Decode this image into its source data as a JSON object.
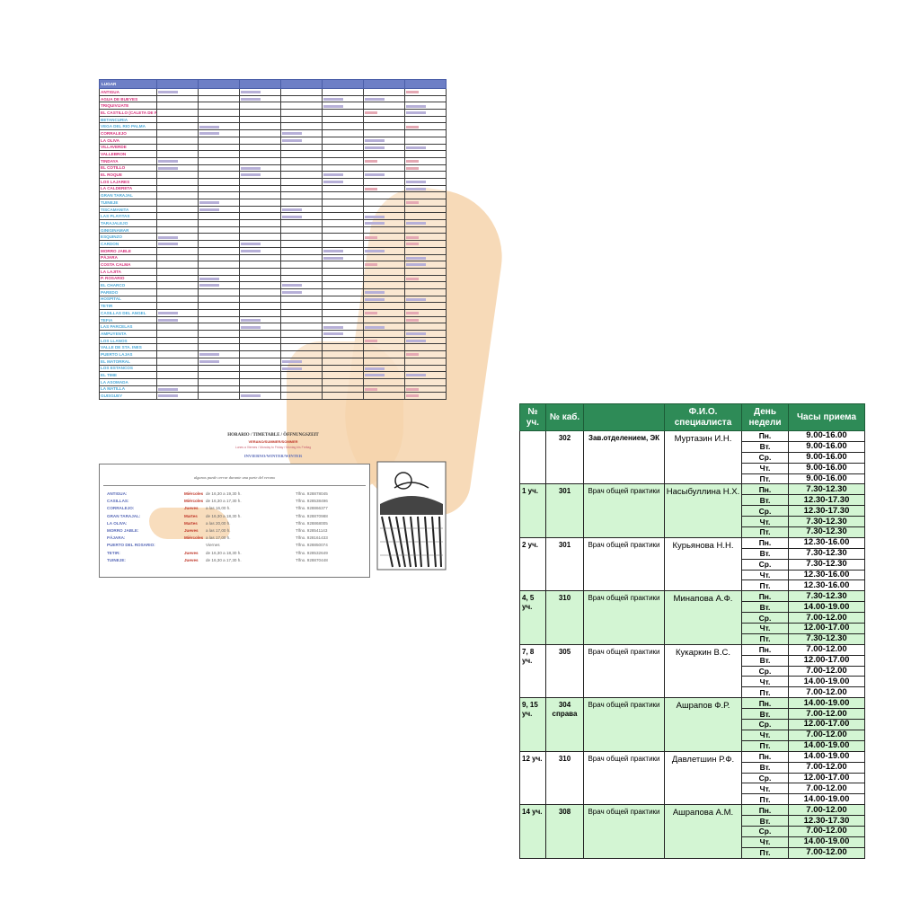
{
  "left_doc": {
    "header_label": "LUGAR",
    "locations": [
      {
        "name": "ANTIGUA",
        "color": "#d6307a"
      },
      {
        "name": "AGUA DE BUEYES",
        "color": "#d6307a"
      },
      {
        "name": "TRIQUIVIJATE",
        "color": "#d6307a"
      },
      {
        "name": "EL CASTILLO (CALETA DE FUSTE)",
        "color": "#d6307a"
      },
      {
        "name": "BETANCURIA",
        "color": "#4aa8d8"
      },
      {
        "name": "VEGA DEL RIO PALMA",
        "color": "#4aa8d8"
      },
      {
        "name": "CORRALEJO",
        "color": "#d6307a"
      },
      {
        "name": "LA OLIVA",
        "color": "#d6307a"
      },
      {
        "name": "VILLAVERDE",
        "color": "#d6307a"
      },
      {
        "name": "VALLEBRON",
        "color": "#d6307a"
      },
      {
        "name": "TINDAYA",
        "color": "#d6307a"
      },
      {
        "name": "EL COTILLO",
        "color": "#d6307a"
      },
      {
        "name": "EL ROQUE",
        "color": "#d6307a"
      },
      {
        "name": "LOS LAJARES",
        "color": "#d6307a"
      },
      {
        "name": "LA CALDERETA",
        "color": "#d6307a"
      },
      {
        "name": "GRAN TARAJAL",
        "color": "#4aa8d8"
      },
      {
        "name": "TUINEJE",
        "color": "#4aa8d8"
      },
      {
        "name": "TISCAMANITA",
        "color": "#4aa8d8"
      },
      {
        "name": "LAS PLAYITAS",
        "color": "#4aa8d8"
      },
      {
        "name": "TARAJALEJO",
        "color": "#4aa8d8"
      },
      {
        "name": "GINIGINAMAR",
        "color": "#4aa8d8"
      },
      {
        "name": "ESQUINZO",
        "color": "#4aa8d8"
      },
      {
        "name": "CARDON",
        "color": "#4aa8d8"
      },
      {
        "name": "MORRO JABLE",
        "color": "#d6307a"
      },
      {
        "name": "PÁJARA",
        "color": "#d6307a"
      },
      {
        "name": "COSTA CALMA",
        "color": "#d6307a"
      },
      {
        "name": "LA LAJITA",
        "color": "#d6307a"
      },
      {
        "name": "P. ROSARIO",
        "color": "#d6307a"
      },
      {
        "name": "EL CHARCO",
        "color": "#4aa8d8"
      },
      {
        "name": "PAREDO",
        "color": "#4aa8d8"
      },
      {
        "name": "HOSPITAL",
        "color": "#4aa8d8"
      },
      {
        "name": "TETIR",
        "color": "#4aa8d8"
      },
      {
        "name": "CASILLAS DEL ANGEL",
        "color": "#4aa8d8"
      },
      {
        "name": "TEFIA",
        "color": "#4aa8d8"
      },
      {
        "name": "LAS PARCELAS",
        "color": "#4aa8d8"
      },
      {
        "name": "AMPUYENTA",
        "color": "#4aa8d8"
      },
      {
        "name": "LOS LLANOS",
        "color": "#4aa8d8"
      },
      {
        "name": "VALLE DE STA. INES",
        "color": "#4aa8d8"
      },
      {
        "name": "PUERTO LAJAS",
        "color": "#4aa8d8"
      },
      {
        "name": "EL MATORRAL",
        "color": "#4aa8d8"
      },
      {
        "name": "LOS ESTANCOS",
        "color": "#4aa8d8"
      },
      {
        "name": "EL TIME",
        "color": "#4aa8d8"
      },
      {
        "name": "LA ASOMADA",
        "color": "#4aa8d8"
      },
      {
        "name": "LA MATILLA",
        "color": "#4aa8d8"
      },
      {
        "name": "GUISGUEY",
        "color": "#4aa8d8"
      }
    ],
    "horario_title": "HORARIO / TIMETABLE / ÖFFNUNGSZEIT",
    "horario_subtitle": "VERANO/SUMMER/SOMMER",
    "horario_line": "Lunes a Viernes / Monday to Friday / Montag bis Freitag",
    "invierno": "INVIERNO/WINTER/WINTER",
    "box_note": "algunos puede cerrar durante una parte del verano",
    "bottom_rows": [
      {
        "place": "ANTIGUA:",
        "day": "Miércoles",
        "hours": "de 16,30 a 19,30 h.",
        "tel": "Tlfno. 928878045"
      },
      {
        "place": "CASILLAS:",
        "day": "Miércoles",
        "hours": "de 16,30 a 17,30 h.",
        "tel": "Tlfno. 928538496"
      },
      {
        "place": "CORRALEJO:",
        "day": "Jueves",
        "hours": "a las 16,00 h.",
        "tel": "Tlfno. 928866377"
      },
      {
        "place": "GRAN TARAJAL:",
        "day": "Martes",
        "hours": "de 16,30 a 18,30 h.",
        "tel": "Tlfno. 928870988"
      },
      {
        "place": "LA OLIVA:",
        "day": "Martes",
        "hours": "a las 20,00 h.",
        "tel": "Tlfno. 928868005"
      },
      {
        "place": "MORRO JABLE:",
        "day": "Jueves",
        "hours": "a las 17,00 h.",
        "tel": "Tlfno. 928541143"
      },
      {
        "place": "PÁJARA:",
        "day": "Miércoles",
        "hours": "a las 17,00 h.",
        "tel": "Tlfno. 928161433"
      },
      {
        "place": "PUERTO DEL ROSARIO:",
        "day": "",
        "hours": "Viernes",
        "tel": "Tlfno. 928850074"
      },
      {
        "place": "TETIR:",
        "day": "Jueves",
        "hours": "de 16,30 a 18,30 h.",
        "tel": "Tlfno. 928532649"
      },
      {
        "place": "TUINEJE:",
        "day": "Jueves",
        "hours": "de 16,30 a 17,30 h.",
        "tel": "Tlfno. 928870448"
      }
    ]
  },
  "right_table": {
    "headers": [
      "№ уч.",
      "№ каб.",
      "",
      "Ф.И.О. специалиста",
      "День недели",
      "Часы приема"
    ],
    "doctors": [
      {
        "uch": "",
        "kab": "302",
        "position": "Зав.отделением, ЭК",
        "name": "Муртазин И.Н.",
        "green": false,
        "days": [
          "Пн.",
          "Вт.",
          "Ср.",
          "Чт.",
          "Пт."
        ],
        "hours": [
          "9.00-16.00",
          "9.00-16.00",
          "9.00-16.00",
          "9.00-16.00",
          "9.00-16.00"
        ]
      },
      {
        "uch": "1 уч.",
        "kab": "301",
        "position": "Врач общей практики",
        "name": "Насыбуллина Н.Х.",
        "green": true,
        "days": [
          "Пн.",
          "Вт.",
          "Ср.",
          "Чт.",
          "Пт."
        ],
        "hours": [
          "7.30-12.30",
          "12.30-17.30",
          "12.30-17.30",
          "7.30-12.30",
          "7.30-12.30"
        ]
      },
      {
        "uch": "2 уч.",
        "kab": "301",
        "position": "Врач общей практики",
        "name": "Курьянова Н.Н.",
        "green": false,
        "days": [
          "Пн.",
          "Вт.",
          "Ср.",
          "Чт.",
          "Пт."
        ],
        "hours": [
          "12.30-16.00",
          "7.30-12.30",
          "7.30-12.30",
          "12.30-16.00",
          "12.30-16.00"
        ]
      },
      {
        "uch": "4, 5 уч.",
        "kab": "310",
        "position": "Врач общей практики",
        "name": "Минапова А.Ф.",
        "green": true,
        "days": [
          "Пн.",
          "Вт.",
          "Ср.",
          "Чт.",
          "Пт."
        ],
        "hours": [
          "7.30-12.30",
          "14.00-19.00",
          "7.00-12.00",
          "12.00-17.00",
          "7.30-12.30"
        ]
      },
      {
        "uch": "7, 8 уч.",
        "kab": "305",
        "position": "Врач общей практики",
        "name": "Кукаркин В.С.",
        "green": false,
        "days": [
          "Пн.",
          "Вт.",
          "Ср.",
          "Чт.",
          "Пт."
        ],
        "hours": [
          "7.00-12.00",
          "12.00-17.00",
          "7.00-12.00",
          "14.00-19.00",
          "7.00-12.00"
        ]
      },
      {
        "uch": "9, 15 уч.",
        "kab": "304 справа",
        "position": "Врач общей практики",
        "name": "Ашрапов Ф.Р.",
        "green": true,
        "days": [
          "Пн.",
          "Вт.",
          "Ср.",
          "Чт.",
          "Пт."
        ],
        "hours": [
          "14.00-19.00",
          "7.00-12.00",
          "12.00-17.00",
          "7.00-12.00",
          "14.00-19.00"
        ]
      },
      {
        "uch": "12 уч.",
        "kab": "310",
        "position": "Врач общей практики",
        "name": "Давлетшин Р.Ф.",
        "green": false,
        "days": [
          "Пн.",
          "Вт.",
          "Ср.",
          "Чт.",
          "Пт."
        ],
        "hours": [
          "14.00-19.00",
          "7.00-12.00",
          "12.00-17.00",
          "7.00-12.00",
          "14.00-19.00"
        ]
      },
      {
        "uch": "14 уч.",
        "kab": "308",
        "position": "Врач общей практики",
        "name": "Ашрапова А.М.",
        "green": true,
        "days": [
          "Пн.",
          "Вт.",
          "Ср.",
          "Чт.",
          "Пт."
        ],
        "hours": [
          "7.00-12.00",
          "12.30-17.30",
          "7.00-12.00",
          "14.00-19.00",
          "7.00-12.00"
        ]
      }
    ]
  }
}
